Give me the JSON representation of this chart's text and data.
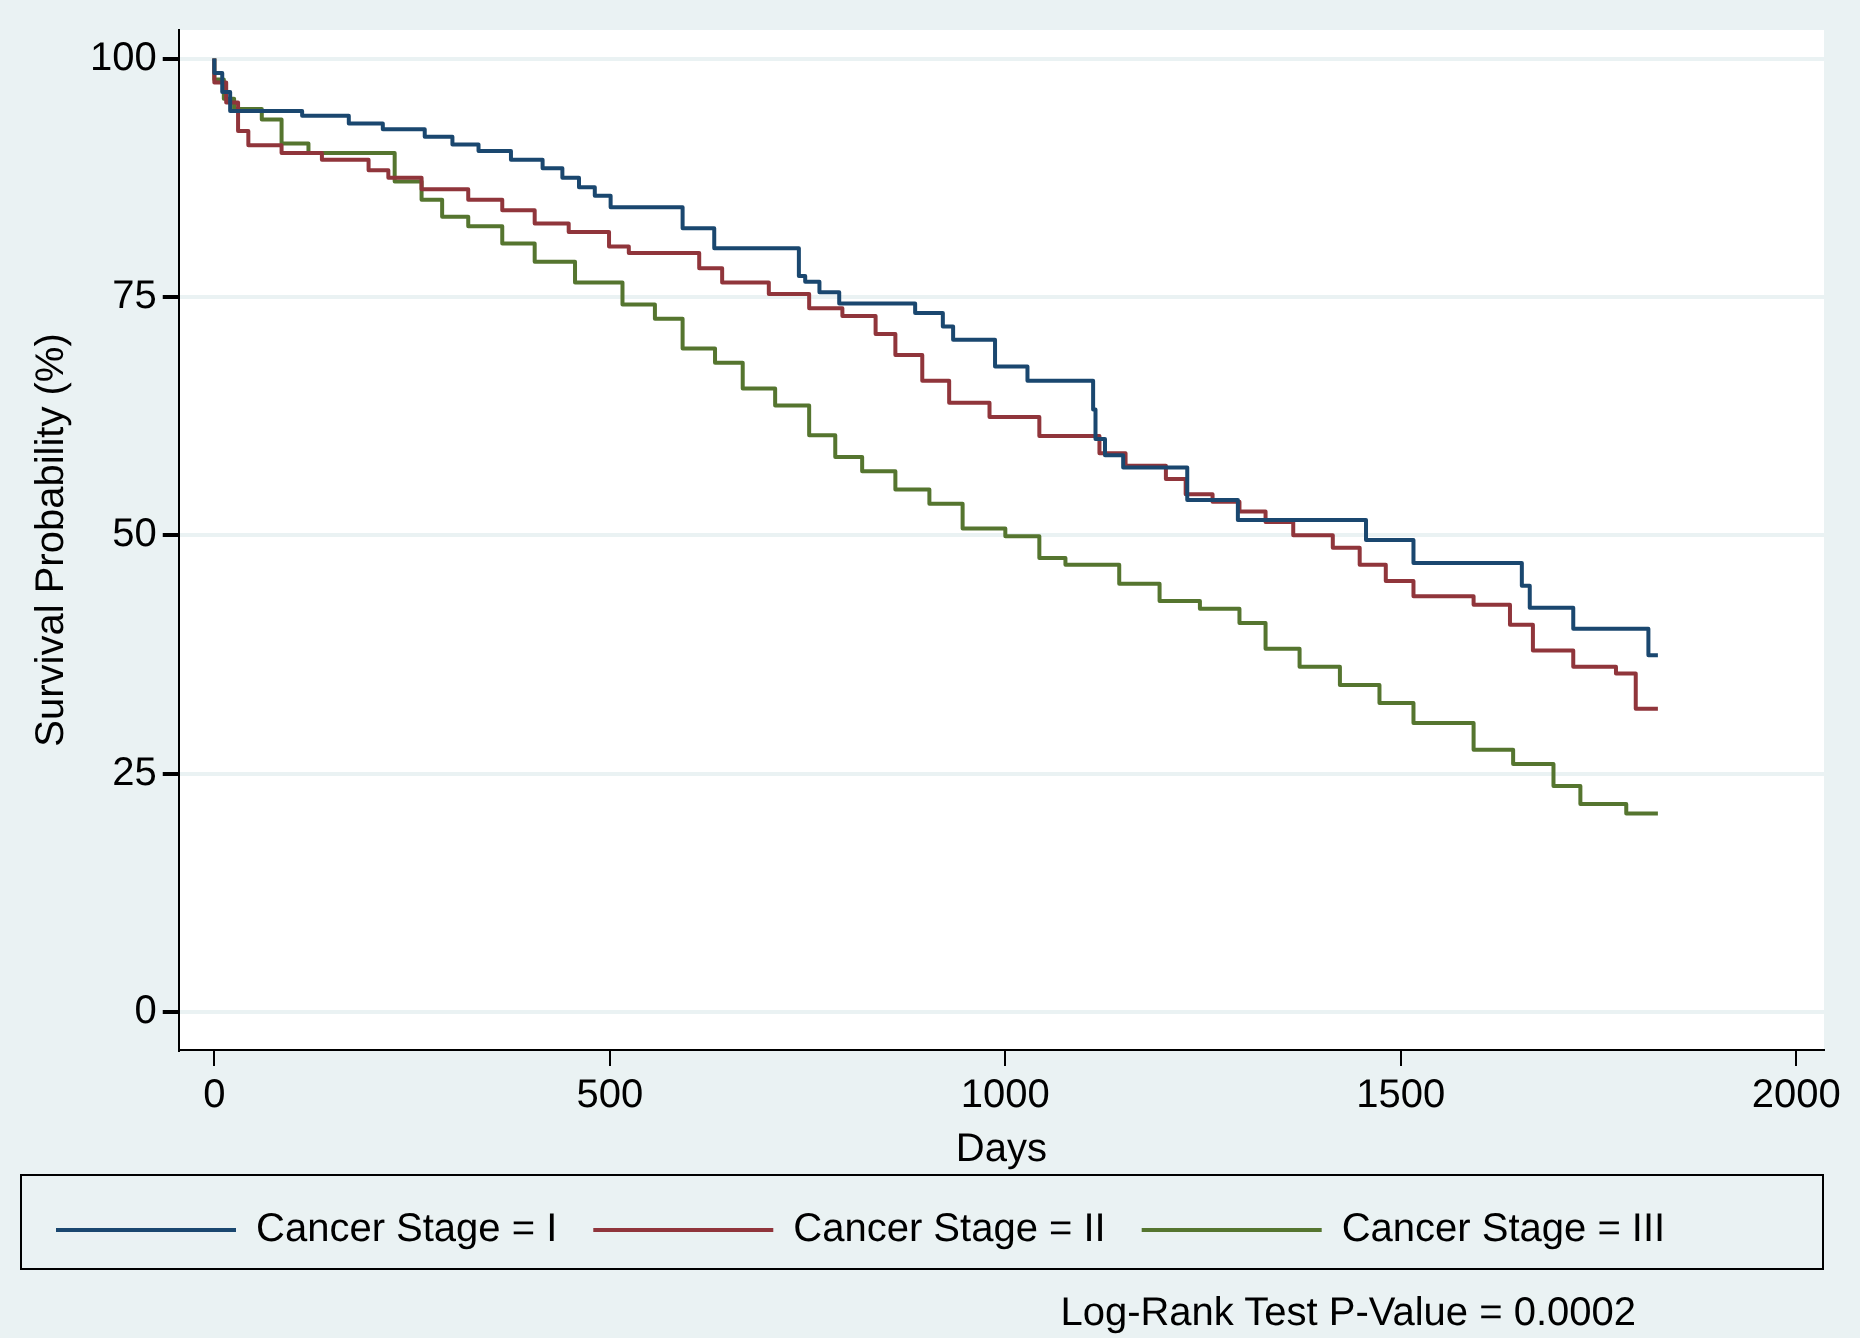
{
  "chart_data": {
    "type": "step",
    "xlabel": "Days",
    "ylabel": "Survival Probability (%)",
    "xlim": [
      -45,
      2035
    ],
    "ylim": [
      -4,
      103
    ],
    "xticks": [
      0,
      500,
      1000,
      1500,
      2000
    ],
    "yticks": [
      0,
      25,
      50,
      75,
      100
    ],
    "grid": "y",
    "legend": "bottom",
    "marker": "none",
    "line_style": "solid",
    "annotations": [
      "Log-Rank Test P-Value = 0.0002"
    ],
    "series": [
      {
        "name": "Cancer Stage = I",
        "color": "#1a476f",
        "x": [
          0,
          10,
          20,
          35,
          111,
          170,
          213,
          266,
          301,
          334,
          375,
          415,
          440,
          461,
          481,
          501,
          592,
          632,
          739,
          747,
          765,
          790,
          886,
          921,
          934,
          987,
          1028,
          1111,
          1114,
          1126,
          1149,
          1230,
          1294,
          1456,
          1516,
          1653,
          1663,
          1718,
          1813,
          1825
        ],
        "values": [
          100,
          98.5,
          96.5,
          94.5,
          94.5,
          94.0,
          93.2,
          92.6,
          91.8,
          91.0,
          90.3,
          89.4,
          88.5,
          87.5,
          86.5,
          85.6,
          84.4,
          82.2,
          80.1,
          77.2,
          76.6,
          75.5,
          74.3,
          73.3,
          71.9,
          70.5,
          67.7,
          66.2,
          63.2,
          60.1,
          58.4,
          57.1,
          53.7,
          51.6,
          49.5,
          47.1,
          44.7,
          42.4,
          40.2,
          37.4
        ]
      },
      {
        "name": "Cancer Stage = II",
        "color": "#90353b",
        "x": [
          0,
          15,
          30,
          43,
          85,
          136,
          195,
          220,
          262,
          321,
          364,
          405,
          448,
          499,
          524,
          613,
          642,
          701,
          752,
          794,
          836,
          861,
          895,
          929,
          980,
          1043,
          1119,
          1152,
          1203,
          1228,
          1262,
          1296,
          1329,
          1364,
          1414,
          1448,
          1481,
          1516,
          1592,
          1638,
          1667,
          1718,
          1772,
          1797,
          1810,
          1825
        ],
        "values": [
          100,
          97.5,
          95.4,
          92.4,
          90.9,
          90.1,
          89.4,
          88.3,
          87.5,
          86.3,
          85.2,
          84.1,
          82.7,
          81.8,
          80.3,
          79.6,
          78.0,
          76.5,
          75.3,
          73.8,
          73.0,
          71.1,
          68.9,
          66.2,
          63.9,
          62.4,
          60.4,
          58.6,
          57.3,
          55.9,
          54.3,
          53.5,
          52.5,
          51.4,
          50.0,
          48.7,
          46.9,
          45.2,
          43.6,
          42.7,
          40.6,
          37.9,
          36.2,
          35.5,
          31.8,
          31.8
        ]
      },
      {
        "name": "Cancer Stage = III",
        "color": "#55752f",
        "x": [
          0,
          12,
          25,
          60,
          85,
          119,
          228,
          262,
          288,
          321,
          364,
          405,
          456,
          516,
          557,
          592,
          633,
          668,
          709,
          752,
          785,
          819,
          861,
          904,
          946,
          1000,
          1043,
          1076,
          1144,
          1195,
          1246,
          1296,
          1329,
          1372,
          1423,
          1473,
          1516,
          1592,
          1642,
          1693,
          1727,
          1785,
          1825
        ],
        "values": [
          100,
          97.8,
          95.8,
          94.7,
          93.6,
          91.1,
          90.1,
          87.1,
          85.2,
          83.4,
          82.4,
          80.6,
          78.7,
          76.5,
          74.2,
          72.7,
          69.6,
          68.1,
          65.4,
          63.6,
          60.5,
          58.2,
          56.7,
          54.8,
          53.3,
          50.7,
          49.9,
          47.6,
          46.9,
          44.9,
          43.1,
          42.3,
          40.8,
          38.1,
          36.2,
          34.3,
          32.4,
          30.3,
          27.5,
          26.0,
          23.7,
          21.8,
          20.8
        ]
      }
    ]
  }
}
